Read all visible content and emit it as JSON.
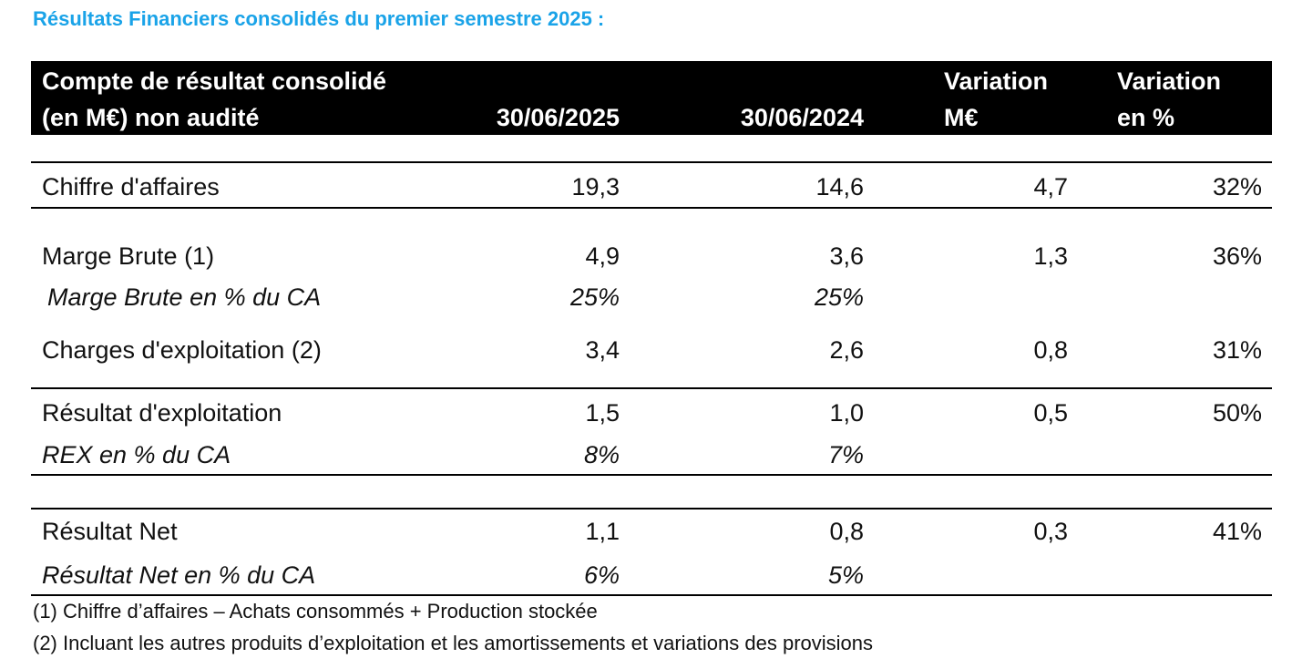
{
  "title": "Résultats Financiers consolidés du premier semestre 2025 :",
  "header": {
    "label_line1": "Compte de résultat consolidé",
    "label_line2": "(en M€) non audité",
    "col1": "30/06/2025",
    "col2": "30/06/2024",
    "col3_line1": "Variation",
    "col3_line2": "M€",
    "col4_line1": "Variation",
    "col4_line2": "en %"
  },
  "rows": [
    {
      "label": "Chiffre d'affaires",
      "v2025": "19,3",
      "v2024": "14,6",
      "var_meur": "4,7",
      "var_pct": "32%"
    },
    {
      "label": "Marge Brute (1)",
      "v2025": "4,9",
      "v2024": "3,6",
      "var_meur": "1,3",
      "var_pct": "36%"
    },
    {
      "label": "Marge Brute en % du CA",
      "v2025": "25%",
      "v2024": "25%"
    },
    {
      "label": "Charges d'exploitation (2)",
      "v2025": "3,4",
      "v2024": "2,6",
      "var_meur": "0,8",
      "var_pct": "31%"
    },
    {
      "label": "Résultat d'exploitation",
      "v2025": "1,5",
      "v2024": "1,0",
      "var_meur": "0,5",
      "var_pct": "50%"
    },
    {
      "label": "REX en % du CA",
      "v2025": "8%",
      "v2024": "7%"
    },
    {
      "label": "Résultat Net",
      "v2025": "1,1",
      "v2024": "0,8",
      "var_meur": "0,3",
      "var_pct": "41%"
    },
    {
      "label": "Résultat Net en % du CA",
      "v2025": "6%",
      "v2024": "5%"
    }
  ],
  "footnotes": [
    "(1) Chiffre d’affaires – Achats consommés + Production stockée",
    "(2) Incluant les autres produits d’exploitation et les amortissements et variations des provisions"
  ]
}
